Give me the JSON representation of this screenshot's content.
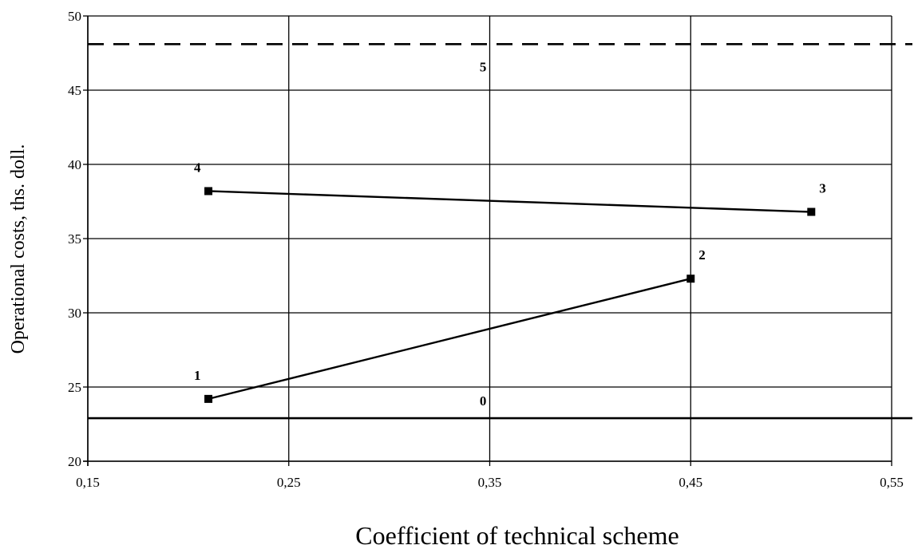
{
  "chart_data": {
    "type": "line",
    "xlabel": "Coefficient of technical scheme",
    "ylabel": "Operational costs, ths. doll.",
    "xlim": [
      0.15,
      0.55
    ],
    "ylim": [
      20,
      50
    ],
    "x_ticks": [
      0.15,
      0.25,
      0.35,
      0.45,
      0.55
    ],
    "x_tick_labels": [
      "0,15",
      "0,25",
      "0,35",
      "0,45",
      "0,55"
    ],
    "y_ticks": [
      20,
      25,
      30,
      35,
      40,
      45,
      50
    ],
    "y_tick_labels": [
      "20",
      "25",
      "30",
      "35",
      "40",
      "45",
      "50"
    ],
    "grid": true,
    "series": [
      {
        "values": [
          {
            "x": 0.21,
            "y": 24.2,
            "label": "1"
          },
          {
            "x": 0.45,
            "y": 32.3,
            "label": "2"
          }
        ]
      },
      {
        "values": [
          {
            "x": 0.21,
            "y": 38.2,
            "label": "4"
          },
          {
            "x": 0.51,
            "y": 36.8,
            "label": "3"
          }
        ]
      }
    ],
    "reference_lines": [
      {
        "y": 22.9,
        "style": "solid",
        "label": "0",
        "label_x": 0.345
      },
      {
        "y": 48.1,
        "style": "dashed",
        "label": "5",
        "label_x": 0.345
      }
    ],
    "color": "#000000"
  }
}
